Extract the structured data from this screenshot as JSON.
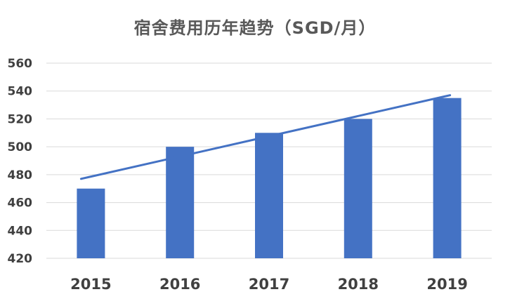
{
  "chart_data": {
    "type": "bar",
    "title": "宿舍费用历年趋势（SGD/月）",
    "xlabel": "",
    "ylabel": "",
    "categories": [
      "2015",
      "2016",
      "2017",
      "2018",
      "2019"
    ],
    "values": [
      470,
      500,
      510,
      520,
      535
    ],
    "ylim": [
      420,
      560
    ],
    "yticks": [
      420,
      440,
      460,
      480,
      500,
      520,
      540,
      560
    ],
    "grid": true,
    "legend": "none",
    "trendline": {
      "type": "linear",
      "start": 477,
      "end": 537
    },
    "colors": {
      "bar": "#4472C4",
      "trendline": "#4472C4",
      "grid": "#D9D9D9"
    }
  }
}
